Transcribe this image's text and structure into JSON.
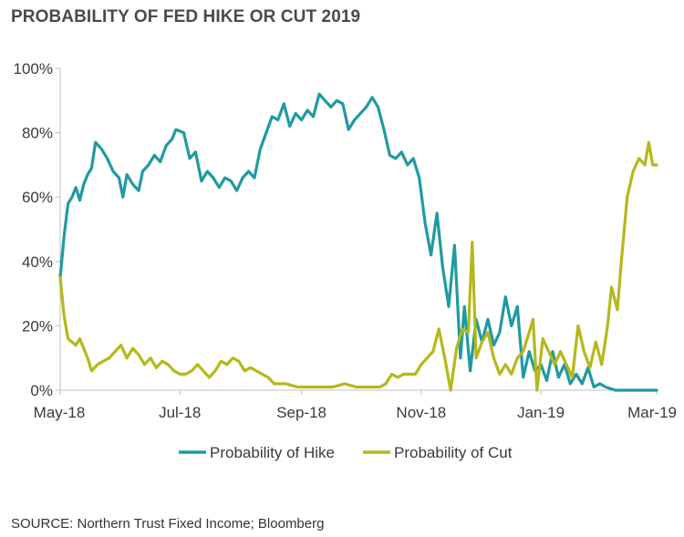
{
  "title": "PROBABILITY OF FED HIKE OR CUT 2019",
  "source": "SOURCE: Northern Trust Fixed Income; Bloomberg",
  "chart_data": {
    "type": "line",
    "title": "PROBABILITY OF FED HIKE OR CUT 2019",
    "xlabel": "",
    "ylabel": "",
    "x_ticks": [
      "May-18",
      "Jul-18",
      "Sep-18",
      "Nov-18",
      "Jan-19",
      "Mar-19"
    ],
    "xlim": [
      "2018-05-01",
      "2019-03-01"
    ],
    "y_ticks": [
      "0%",
      "20%",
      "40%",
      "60%",
      "80%",
      "100%"
    ],
    "ylim": [
      0,
      100
    ],
    "grid": false,
    "legend_position": "bottom",
    "series": [
      {
        "name": "Probability of Hike",
        "color": "#1f9aa0",
        "points": [
          [
            "2018-05-01",
            35
          ],
          [
            "2018-05-03",
            48
          ],
          [
            "2018-05-05",
            58
          ],
          [
            "2018-05-07",
            60
          ],
          [
            "2018-05-09",
            63
          ],
          [
            "2018-05-11",
            59
          ],
          [
            "2018-05-13",
            64
          ],
          [
            "2018-05-15",
            67
          ],
          [
            "2018-05-17",
            69
          ],
          [
            "2018-05-19",
            77
          ],
          [
            "2018-05-22",
            75
          ],
          [
            "2018-05-25",
            72
          ],
          [
            "2018-05-28",
            68
          ],
          [
            "2018-05-31",
            66
          ],
          [
            "2018-06-02",
            60
          ],
          [
            "2018-06-04",
            67
          ],
          [
            "2018-06-07",
            64
          ],
          [
            "2018-06-10",
            62
          ],
          [
            "2018-06-12",
            68
          ],
          [
            "2018-06-15",
            70
          ],
          [
            "2018-06-18",
            73
          ],
          [
            "2018-06-21",
            71
          ],
          [
            "2018-06-24",
            76
          ],
          [
            "2018-06-27",
            78
          ],
          [
            "2018-06-29",
            81
          ],
          [
            "2018-07-03",
            80
          ],
          [
            "2018-07-06",
            72
          ],
          [
            "2018-07-09",
            74
          ],
          [
            "2018-07-12",
            65
          ],
          [
            "2018-07-15",
            68
          ],
          [
            "2018-07-18",
            66
          ],
          [
            "2018-07-21",
            63
          ],
          [
            "2018-07-24",
            66
          ],
          [
            "2018-07-27",
            65
          ],
          [
            "2018-07-30",
            62
          ],
          [
            "2018-08-02",
            66
          ],
          [
            "2018-08-05",
            68
          ],
          [
            "2018-08-08",
            66
          ],
          [
            "2018-08-11",
            75
          ],
          [
            "2018-08-14",
            80
          ],
          [
            "2018-08-17",
            85
          ],
          [
            "2018-08-20",
            84
          ],
          [
            "2018-08-23",
            89
          ],
          [
            "2018-08-26",
            82
          ],
          [
            "2018-08-29",
            86
          ],
          [
            "2018-09-01",
            84
          ],
          [
            "2018-09-04",
            87
          ],
          [
            "2018-09-07",
            85
          ],
          [
            "2018-09-10",
            92
          ],
          [
            "2018-09-13",
            90
          ],
          [
            "2018-09-16",
            88
          ],
          [
            "2018-09-19",
            90
          ],
          [
            "2018-09-22",
            89
          ],
          [
            "2018-09-25",
            81
          ],
          [
            "2018-09-28",
            84
          ],
          [
            "2018-10-01",
            86
          ],
          [
            "2018-10-04",
            88
          ],
          [
            "2018-10-07",
            91
          ],
          [
            "2018-10-10",
            88
          ],
          [
            "2018-10-13",
            81
          ],
          [
            "2018-10-16",
            73
          ],
          [
            "2018-10-19",
            72
          ],
          [
            "2018-10-22",
            74
          ],
          [
            "2018-10-25",
            70
          ],
          [
            "2018-10-28",
            72
          ],
          [
            "2018-10-31",
            66
          ],
          [
            "2018-11-03",
            52
          ],
          [
            "2018-11-06",
            42
          ],
          [
            "2018-11-09",
            55
          ],
          [
            "2018-11-12",
            38
          ],
          [
            "2018-11-15",
            26
          ],
          [
            "2018-11-18",
            45
          ],
          [
            "2018-11-21",
            10
          ],
          [
            "2018-11-23",
            26
          ],
          [
            "2018-11-26",
            6
          ],
          [
            "2018-11-29",
            22
          ],
          [
            "2018-12-02",
            15
          ],
          [
            "2018-12-05",
            22
          ],
          [
            "2018-12-08",
            14
          ],
          [
            "2018-12-11",
            18
          ],
          [
            "2018-12-14",
            29
          ],
          [
            "2018-12-17",
            20
          ],
          [
            "2018-12-20",
            26
          ],
          [
            "2018-12-23",
            4
          ],
          [
            "2018-12-26",
            12
          ],
          [
            "2018-12-29",
            6
          ],
          [
            "2019-01-01",
            8
          ],
          [
            "2019-01-04",
            3
          ],
          [
            "2019-01-07",
            12
          ],
          [
            "2019-01-10",
            4
          ],
          [
            "2019-01-13",
            8
          ],
          [
            "2019-01-16",
            2
          ],
          [
            "2019-01-19",
            5
          ],
          [
            "2019-01-22",
            2
          ],
          [
            "2019-01-25",
            7
          ],
          [
            "2019-01-28",
            1
          ],
          [
            "2019-01-31",
            2
          ],
          [
            "2019-02-03",
            1
          ],
          [
            "2019-02-08",
            0
          ],
          [
            "2019-02-15",
            0
          ],
          [
            "2019-02-22",
            0
          ],
          [
            "2019-03-01",
            0
          ]
        ]
      },
      {
        "name": "Probability of Cut",
        "color": "#b5b81a",
        "points": [
          [
            "2018-05-01",
            35
          ],
          [
            "2018-05-03",
            23
          ],
          [
            "2018-05-05",
            16
          ],
          [
            "2018-05-07",
            15
          ],
          [
            "2018-05-09",
            14
          ],
          [
            "2018-05-11",
            16
          ],
          [
            "2018-05-13",
            13
          ],
          [
            "2018-05-15",
            10
          ],
          [
            "2018-05-17",
            6
          ],
          [
            "2018-05-20",
            8
          ],
          [
            "2018-05-23",
            9
          ],
          [
            "2018-05-26",
            10
          ],
          [
            "2018-05-29",
            12
          ],
          [
            "2018-06-01",
            14
          ],
          [
            "2018-06-04",
            10
          ],
          [
            "2018-06-07",
            13
          ],
          [
            "2018-06-10",
            11
          ],
          [
            "2018-06-13",
            8
          ],
          [
            "2018-06-16",
            10
          ],
          [
            "2018-06-19",
            7
          ],
          [
            "2018-06-22",
            9
          ],
          [
            "2018-06-25",
            8
          ],
          [
            "2018-06-28",
            6
          ],
          [
            "2018-07-01",
            5
          ],
          [
            "2018-07-04",
            5
          ],
          [
            "2018-07-07",
            6
          ],
          [
            "2018-07-10",
            8
          ],
          [
            "2018-07-13",
            6
          ],
          [
            "2018-07-16",
            4
          ],
          [
            "2018-07-19",
            6
          ],
          [
            "2018-07-22",
            9
          ],
          [
            "2018-07-25",
            8
          ],
          [
            "2018-07-28",
            10
          ],
          [
            "2018-07-31",
            9
          ],
          [
            "2018-08-03",
            6
          ],
          [
            "2018-08-06",
            7
          ],
          [
            "2018-08-09",
            6
          ],
          [
            "2018-08-12",
            5
          ],
          [
            "2018-08-15",
            4
          ],
          [
            "2018-08-18",
            2
          ],
          [
            "2018-08-24",
            2
          ],
          [
            "2018-08-30",
            1
          ],
          [
            "2018-09-05",
            1
          ],
          [
            "2018-09-11",
            1
          ],
          [
            "2018-09-17",
            1
          ],
          [
            "2018-09-23",
            2
          ],
          [
            "2018-09-29",
            1
          ],
          [
            "2018-10-05",
            1
          ],
          [
            "2018-10-11",
            1
          ],
          [
            "2018-10-14",
            2
          ],
          [
            "2018-10-17",
            5
          ],
          [
            "2018-10-20",
            4
          ],
          [
            "2018-10-23",
            5
          ],
          [
            "2018-10-26",
            5
          ],
          [
            "2018-10-29",
            5
          ],
          [
            "2018-11-01",
            8
          ],
          [
            "2018-11-04",
            10
          ],
          [
            "2018-11-07",
            12
          ],
          [
            "2018-11-10",
            19
          ],
          [
            "2018-11-13",
            10
          ],
          [
            "2018-11-16",
            0
          ],
          [
            "2018-11-19",
            13
          ],
          [
            "2018-11-22",
            19
          ],
          [
            "2018-11-25",
            18
          ],
          [
            "2018-11-27",
            46
          ],
          [
            "2018-11-29",
            10
          ],
          [
            "2018-12-02",
            15
          ],
          [
            "2018-12-05",
            18
          ],
          [
            "2018-12-08",
            10
          ],
          [
            "2018-12-11",
            5
          ],
          [
            "2018-12-14",
            8
          ],
          [
            "2018-12-17",
            5
          ],
          [
            "2018-12-20",
            10
          ],
          [
            "2018-12-23",
            12
          ],
          [
            "2018-12-26",
            18
          ],
          [
            "2018-12-28",
            22
          ],
          [
            "2018-12-30",
            0
          ],
          [
            "2019-01-02",
            16
          ],
          [
            "2019-01-05",
            12
          ],
          [
            "2019-01-08",
            8
          ],
          [
            "2019-01-11",
            12
          ],
          [
            "2019-01-14",
            8
          ],
          [
            "2019-01-17",
            4
          ],
          [
            "2019-01-20",
            20
          ],
          [
            "2019-01-23",
            12
          ],
          [
            "2019-01-26",
            7
          ],
          [
            "2019-01-29",
            15
          ],
          [
            "2019-02-01",
            8
          ],
          [
            "2019-02-04",
            20
          ],
          [
            "2019-02-06",
            32
          ],
          [
            "2019-02-09",
            25
          ],
          [
            "2019-02-11",
            40
          ],
          [
            "2019-02-14",
            60
          ],
          [
            "2019-02-17",
            68
          ],
          [
            "2019-02-20",
            72
          ],
          [
            "2019-02-23",
            70
          ],
          [
            "2019-02-25",
            77
          ],
          [
            "2019-02-27",
            70
          ],
          [
            "2019-03-01",
            70
          ]
        ]
      }
    ]
  }
}
